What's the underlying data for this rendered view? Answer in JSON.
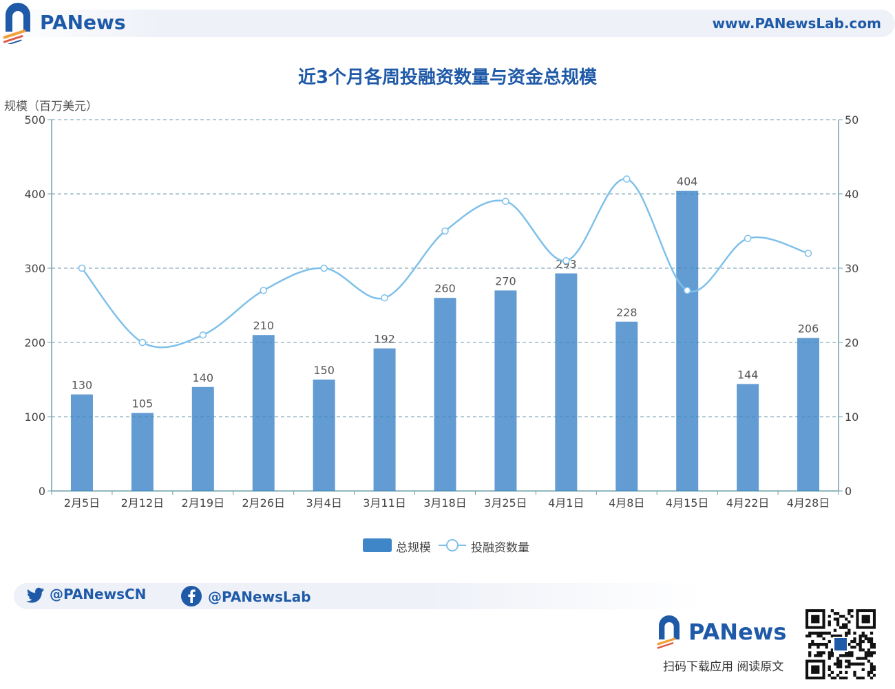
{
  "header": {
    "brand": "PANews",
    "url": "www.PANewsLab.com"
  },
  "chart_data": {
    "type": "bar",
    "title": "近3个月各周投融资数量与资金总规模",
    "ylabel": "规模（百万美元）",
    "categories": [
      "2月5日",
      "2月12日",
      "2月19日",
      "2月26日",
      "3月4日",
      "3月11日",
      "3月18日",
      "3月25日",
      "4月1日",
      "4月8日",
      "4月15日",
      "4月22日",
      "4月28日"
    ],
    "ylim": [
      0,
      500
    ],
    "yticks": [
      0,
      100,
      200,
      300,
      400,
      500
    ],
    "y2lim": [
      0,
      50
    ],
    "y2ticks": [
      0,
      10,
      20,
      30,
      40,
      50
    ],
    "grid": true,
    "legend_position": "bottom",
    "series": [
      {
        "name": "总规模",
        "type": "bar",
        "axis": "left",
        "values": [
          130,
          105,
          140,
          210,
          150,
          192,
          260,
          270,
          293,
          228,
          404,
          144,
          206
        ]
      },
      {
        "name": "投融资数量",
        "type": "line",
        "axis": "right",
        "values": [
          30,
          20,
          21,
          27,
          30,
          26,
          35,
          39,
          31,
          42,
          27,
          34,
          32
        ]
      }
    ]
  },
  "colors": {
    "brand": "#1f5aa8",
    "bar": "#3f86c8",
    "line": "#7ec0ea",
    "grid": "#6a9aa8",
    "axis": "#6fa0aa"
  },
  "social": {
    "twitter": "@PANewsCN",
    "facebook": "@PANewsLab"
  },
  "footer": {
    "brand": "PANews",
    "caption": "扫码下载应用  阅读原文"
  }
}
